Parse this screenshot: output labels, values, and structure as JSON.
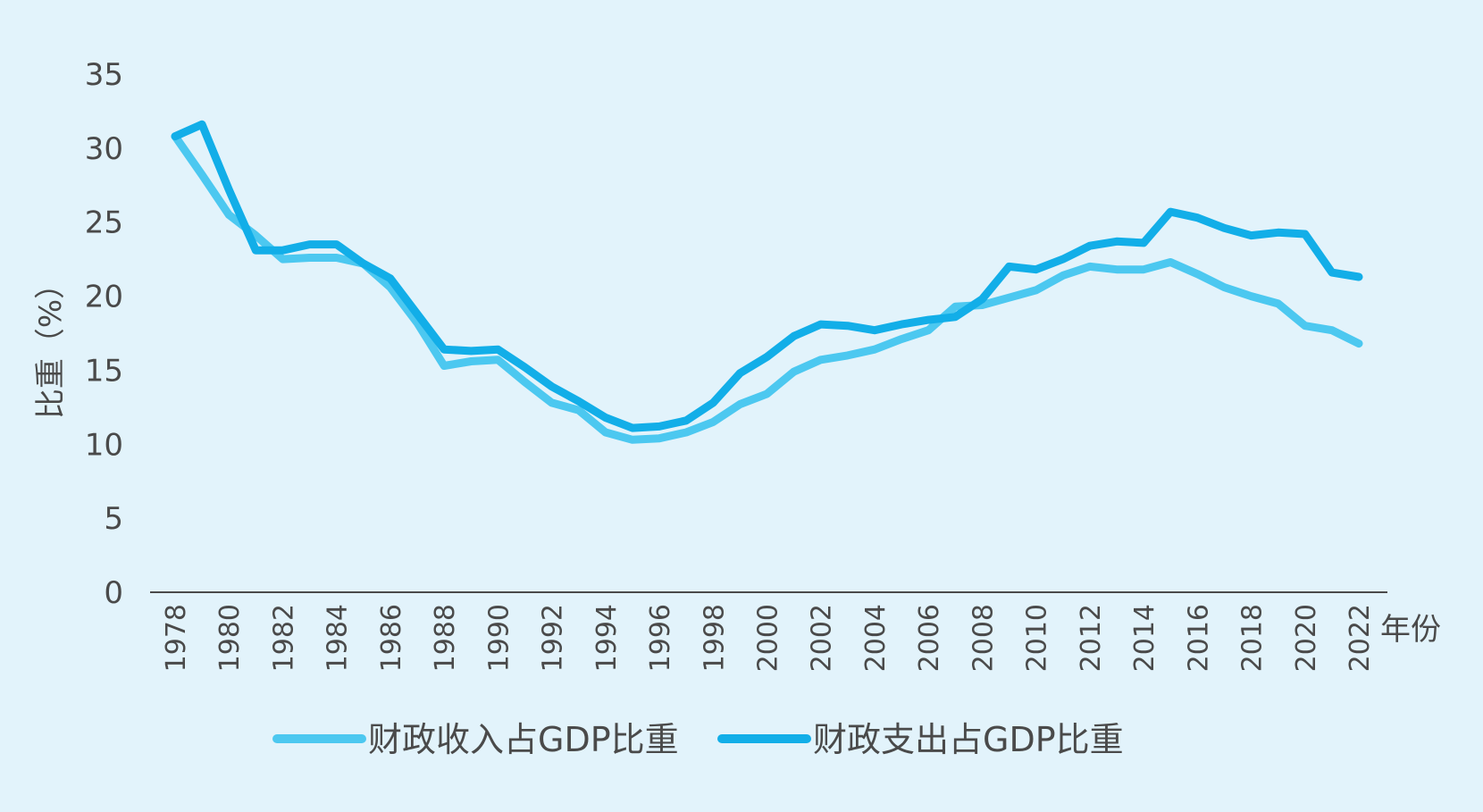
{
  "chart_data": {
    "type": "line",
    "ylabel": "比重（%）",
    "xlabel": "年份",
    "ylim": [
      0,
      35
    ],
    "yticks": [
      0,
      5,
      10,
      15,
      20,
      25,
      30,
      35
    ],
    "xticks": [
      1978,
      1980,
      1982,
      1984,
      1986,
      1988,
      1990,
      1992,
      1994,
      1996,
      1998,
      2000,
      2002,
      2004,
      2006,
      2008,
      2010,
      2012,
      2014,
      2016,
      2018,
      2020,
      2022
    ],
    "x": [
      1978,
      1979,
      1980,
      1981,
      1982,
      1983,
      1984,
      1985,
      1986,
      1987,
      1988,
      1989,
      1990,
      1991,
      1992,
      1993,
      1994,
      1995,
      1996,
      1997,
      1998,
      1999,
      2000,
      2001,
      2002,
      2003,
      2004,
      2005,
      2006,
      2007,
      2008,
      2009,
      2010,
      2011,
      2012,
      2013,
      2014,
      2015,
      2016,
      2017,
      2018,
      2019,
      2020,
      2021,
      2022
    ],
    "series": [
      {
        "name": "财政收入占GDP比重",
        "color": "#4cc8f0",
        "values": [
          30.8,
          28.2,
          25.5,
          24.1,
          22.5,
          22.6,
          22.6,
          22.2,
          20.6,
          18.2,
          15.3,
          15.6,
          15.7,
          14.2,
          12.8,
          12.3,
          10.8,
          10.3,
          10.4,
          10.8,
          11.5,
          12.7,
          13.4,
          14.9,
          15.7,
          16.0,
          16.4,
          17.1,
          17.7,
          19.3,
          19.4,
          19.9,
          20.4,
          21.4,
          22.0,
          21.8,
          21.8,
          22.3,
          21.5,
          20.6,
          20.0,
          19.5,
          18.0,
          17.7,
          16.8
        ]
      },
      {
        "name": "财政支出占GDP比重",
        "color": "#12aee8",
        "values": [
          30.8,
          31.6,
          27.2,
          23.1,
          23.1,
          23.5,
          23.5,
          22.2,
          21.2,
          18.8,
          16.4,
          16.3,
          16.4,
          15.2,
          13.9,
          12.9,
          11.8,
          11.1,
          11.2,
          11.6,
          12.8,
          14.8,
          15.9,
          17.3,
          18.1,
          18.0,
          17.7,
          18.1,
          18.4,
          18.6,
          19.8,
          22.0,
          21.8,
          22.5,
          23.4,
          23.7,
          23.6,
          25.7,
          25.3,
          24.6,
          24.1,
          24.3,
          24.2,
          21.6,
          21.3
        ]
      }
    ],
    "legend_position": "bottom",
    "grid": false
  },
  "colors": {
    "background": "#e2f3fb",
    "axis": "#4a4a4a",
    "text": "#4a4a4a"
  }
}
